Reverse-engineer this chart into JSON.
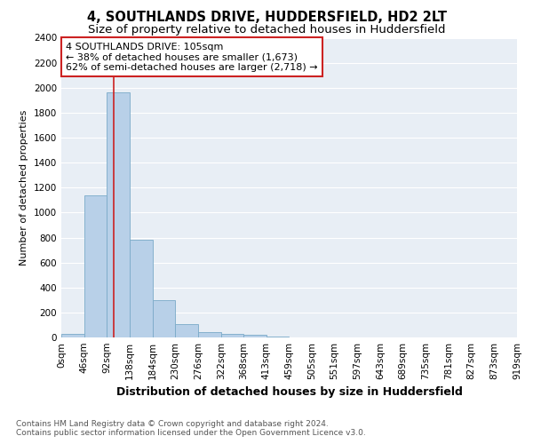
{
  "title": "4, SOUTHLANDS DRIVE, HUDDERSFIELD, HD2 2LT",
  "subtitle": "Size of property relative to detached houses in Huddersfield",
  "xlabel": "Distribution of detached houses by size in Huddersfield",
  "ylabel": "Number of detached properties",
  "bar_values": [
    30,
    1140,
    1960,
    780,
    300,
    105,
    40,
    30,
    20,
    5,
    3,
    2,
    1,
    1,
    0,
    0,
    0,
    0,
    0,
    0
  ],
  "bin_edges": [
    0,
    46,
    92,
    138,
    184,
    230,
    276,
    322,
    368,
    413,
    459,
    505,
    551,
    597,
    643,
    689,
    735,
    781,
    827,
    873,
    919
  ],
  "bin_labels": [
    "0sqm",
    "46sqm",
    "92sqm",
    "138sqm",
    "184sqm",
    "230sqm",
    "276sqm",
    "322sqm",
    "368sqm",
    "413sqm",
    "459sqm",
    "505sqm",
    "551sqm",
    "597sqm",
    "643sqm",
    "689sqm",
    "735sqm",
    "781sqm",
    "827sqm",
    "873sqm",
    "919sqm"
  ],
  "bar_color": "#b8d0e8",
  "bar_edge_color": "#7aaac8",
  "ylim": [
    0,
    2400
  ],
  "yticks": [
    0,
    200,
    400,
    600,
    800,
    1000,
    1200,
    1400,
    1600,
    1800,
    2000,
    2200,
    2400
  ],
  "property_size": 105,
  "red_line_color": "#cc2222",
  "annotation_line1": "4 SOUTHLANDS DRIVE: 105sqm",
  "annotation_line2": "← 38% of detached houses are smaller (1,673)",
  "annotation_line3": "62% of semi-detached houses are larger (2,718) →",
  "annotation_box_color": "#cc2222",
  "footer_line1": "Contains HM Land Registry data © Crown copyright and database right 2024.",
  "footer_line2": "Contains public sector information licensed under the Open Government Licence v3.0.",
  "fig_facecolor": "#ffffff",
  "plot_facecolor": "#e8eef5",
  "grid_color": "#ffffff",
  "title_fontsize": 10.5,
  "subtitle_fontsize": 9.5,
  "xlabel_fontsize": 9,
  "ylabel_fontsize": 8,
  "tick_fontsize": 7.5,
  "annotation_fontsize": 8,
  "footer_fontsize": 6.5
}
